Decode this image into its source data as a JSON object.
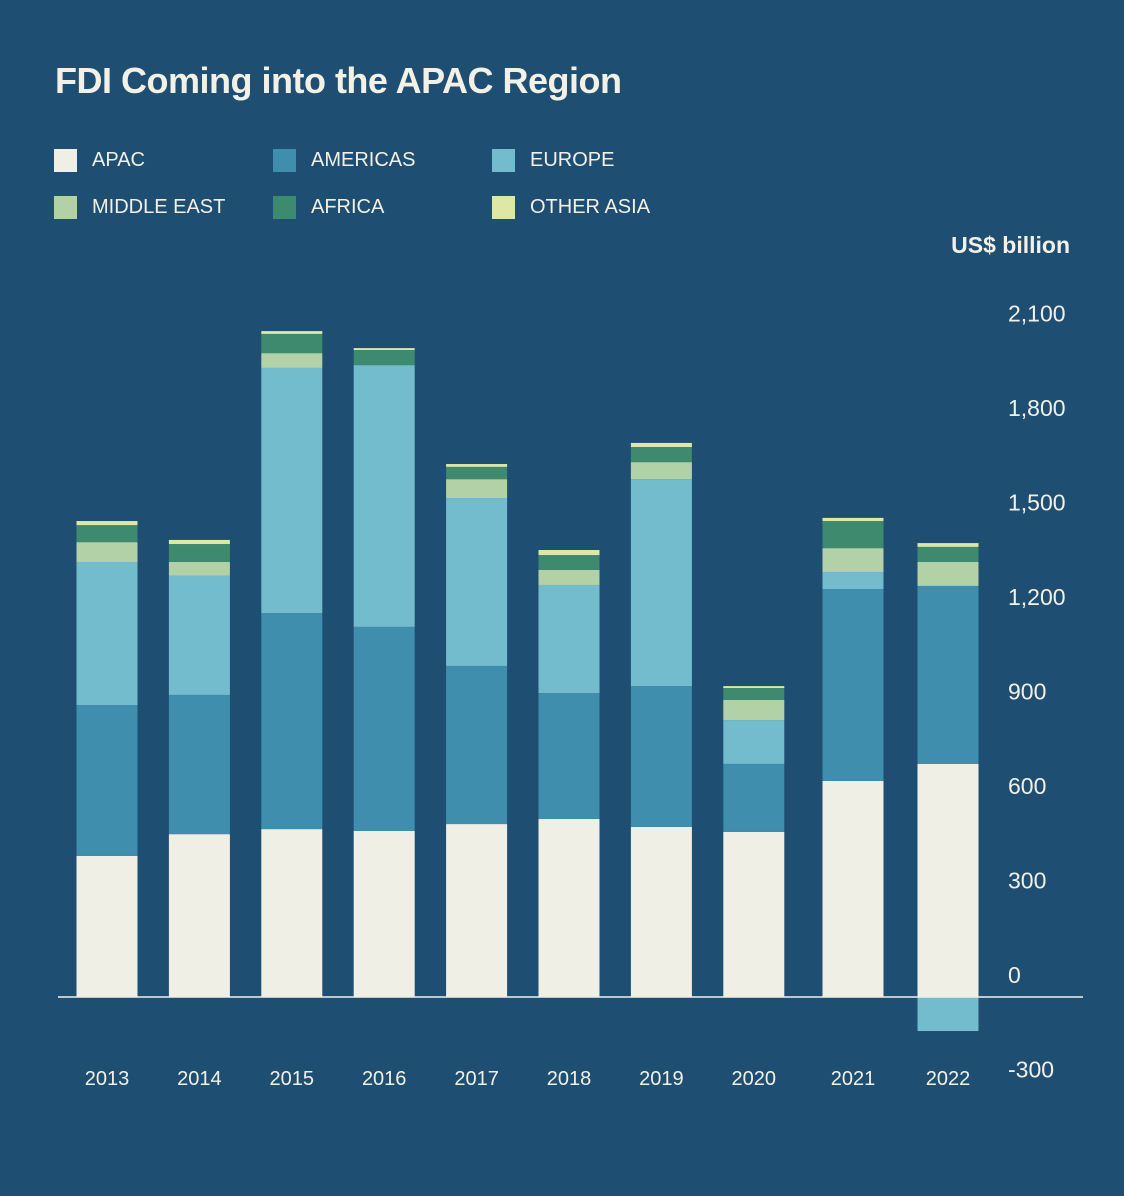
{
  "chart_data": {
    "type": "bar",
    "stacked": true,
    "title": "FDI Coming into the APAC Region",
    "ylabel": "US$ billion",
    "xlabel": "",
    "ylim": [
      -300,
      2100
    ],
    "yticks": [
      "2,100",
      "1,800",
      "1,500",
      "1,200",
      "900",
      "600",
      "300",
      "0",
      "-300"
    ],
    "ytick_values": [
      2100,
      1800,
      1500,
      1200,
      900,
      600,
      300,
      0,
      -300
    ],
    "categories": [
      "2013",
      "2014",
      "2015",
      "2016",
      "2017",
      "2018",
      "2019",
      "2020",
      "2021",
      "2022"
    ],
    "series": [
      {
        "name": "APAC",
        "color": "#f0efe6",
        "values": [
          448,
          517,
          533,
          527,
          549,
          565,
          540,
          524,
          686,
          740
        ]
      },
      {
        "name": "AMERICAS",
        "color": "#3f8eae",
        "values": [
          479,
          442,
          686,
          648,
          502,
          400,
          447,
          216,
          609,
          565
        ]
      },
      {
        "name": "EUROPE",
        "color": "#72bccd",
        "values": [
          454,
          378,
          778,
          831,
          533,
          343,
          657,
          139,
          54,
          -108
        ]
      },
      {
        "name": "MIDDLE EAST",
        "color": "#b2d1a6",
        "values": [
          63,
          44,
          47,
          0,
          60,
          48,
          54,
          64,
          76,
          76
        ]
      },
      {
        "name": "AFRICA",
        "color": "#3e8a6f",
        "values": [
          54,
          57,
          61,
          48,
          39,
          47,
          48,
          38,
          86,
          48
        ]
      },
      {
        "name": "OTHER ASIA",
        "color": "#dfe7a6",
        "values": [
          13,
          13,
          9,
          6,
          9,
          16,
          13,
          6,
          10,
          12
        ]
      }
    ],
    "legend_position": "top-left",
    "grid": false
  }
}
